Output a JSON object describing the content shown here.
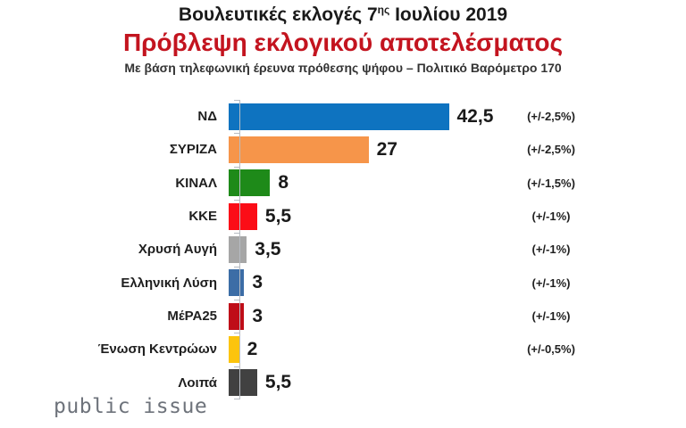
{
  "header": {
    "title_prefix": "Βουλευτικές εκλογές 7",
    "title_superscript": "ης",
    "title_suffix": " Ιουλίου 2019",
    "subtitle": "Πρόβλεψη εκλογικού αποτελέσματος",
    "note": "Με βάση τηλεφωνική έρευνα πρόθεσης ψήφου – Πολιτικό Βαρόμετρο 170"
  },
  "chart_data": {
    "type": "bar",
    "orientation": "horizontal",
    "title": "Πρόβλεψη εκλογικού αποτελέσματος",
    "categories": [
      "ΝΔ",
      "ΣΥΡΙΖΑ",
      "ΚΙΝΑΛ",
      "ΚΚΕ",
      "Χρυσή Αυγή",
      "Ελληνική Λύση",
      "ΜέΡΑ25",
      "Ένωση Κεντρώων",
      "Λοιπά"
    ],
    "values": [
      42.5,
      27,
      8,
      5.5,
      3.5,
      3,
      3,
      2,
      5.5
    ],
    "value_labels": [
      "42,5",
      "27",
      "8",
      "5,5",
      "3,5",
      "3",
      "3",
      "2",
      "5,5"
    ],
    "margins_of_error": [
      "(+/-2,5%)",
      "(+/-2,5%)",
      "(+/-1,5%)",
      "(+/-1%)",
      "(+/-1%)",
      "(+/-1%)",
      "(+/-1%)",
      "(+/-0,5%)",
      ""
    ],
    "bar_colors": [
      "#0e73c0",
      "#f6954a",
      "#1e8a19",
      "#fb0d17",
      "#a6a6a6",
      "#3c6da6",
      "#bf0d18",
      "#fcc40d",
      "#414141"
    ],
    "xlim": [
      0,
      45
    ],
    "grid": false,
    "legend": false,
    "axis_color": "#b7bcc3",
    "unit": "%"
  },
  "footer": {
    "logo_text": "public issue"
  }
}
